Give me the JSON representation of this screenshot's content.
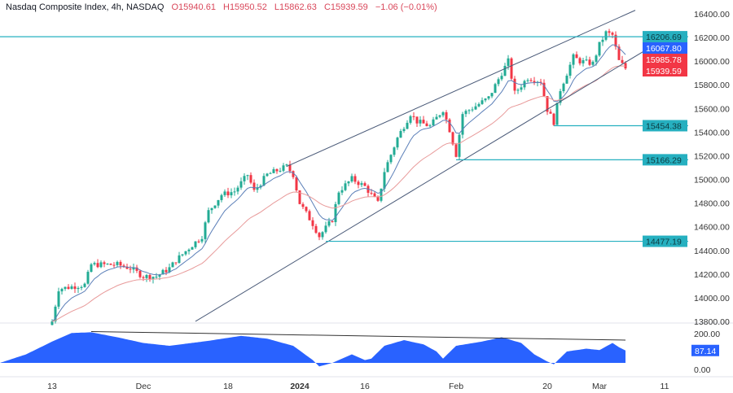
{
  "legend": {
    "symbol": "Nasdaq Composite Index, 4h, NASDAQ",
    "open": "O15940.61",
    "high": "H15950.52",
    "low": "L15862.63",
    "close": "C15939.59",
    "change": "−1.06 (−0.01%)"
  },
  "colors": {
    "up": "#22ab94",
    "down": "#f23645",
    "ma_fast": "#5b7fb8",
    "ma_slow": "#e89a9a",
    "level": "#26b0c0",
    "channel": "#4a5a78",
    "osc": "#2962ff"
  },
  "chart_data": {
    "type": "candlestick",
    "title": "Nasdaq Composite Index, 4h",
    "ylim": [
      13800,
      16450
    ],
    "y_ticks": [
      16400,
      16200,
      16000,
      15800,
      15600,
      15400,
      15200,
      15000,
      14800,
      14600,
      14400,
      14200,
      14000,
      13800
    ],
    "x_ticks": [
      {
        "i": 0,
        "label": "13"
      },
      {
        "i": 14,
        "label": "Dec"
      },
      {
        "i": 27,
        "label": "18"
      },
      {
        "i": 38,
        "label": "2024"
      },
      {
        "i": 48,
        "label": "16"
      },
      {
        "i": 62,
        "label": "Feb"
      },
      {
        "i": 76,
        "label": "20"
      },
      {
        "i": 84,
        "label": "Mar"
      },
      {
        "i": 94,
        "label": "11"
      }
    ],
    "close_anchors": [
      [
        0,
        13800
      ],
      [
        1,
        14075
      ],
      [
        5,
        14110
      ],
      [
        6,
        14280
      ],
      [
        10,
        14280
      ],
      [
        12,
        14250
      ],
      [
        14,
        14180
      ],
      [
        16,
        14180
      ],
      [
        18,
        14250
      ],
      [
        19,
        14315
      ],
      [
        21,
        14420
      ],
      [
        23,
        14520
      ],
      [
        24,
        14730
      ],
      [
        26,
        14870
      ],
      [
        28,
        14900
      ],
      [
        30,
        15040
      ],
      [
        31,
        14900
      ],
      [
        33,
        15040
      ],
      [
        36,
        15110
      ],
      [
        37,
        15040
      ],
      [
        38,
        14800
      ],
      [
        40,
        14625
      ],
      [
        41,
        14520
      ],
      [
        43,
        14660
      ],
      [
        44,
        14900
      ],
      [
        46,
        15005
      ],
      [
        48,
        14940
      ],
      [
        50,
        14800
      ],
      [
        51,
        15070
      ],
      [
        53,
        15350
      ],
      [
        55,
        15555
      ],
      [
        56,
        15490
      ],
      [
        58,
        15450
      ],
      [
        60,
        15590
      ],
      [
        61,
        15420
      ],
      [
        62,
        15210
      ],
      [
        63,
        15555
      ],
      [
        65,
        15620
      ],
      [
        67,
        15690
      ],
      [
        69,
        15900
      ],
      [
        70,
        16000
      ],
      [
        71,
        15730
      ],
      [
        73,
        15860
      ],
      [
        75,
        15830
      ],
      [
        76,
        15590
      ],
      [
        77,
        15485
      ],
      [
        78,
        15760
      ],
      [
        80,
        16035
      ],
      [
        81,
        16000
      ],
      [
        83,
        15980
      ],
      [
        84,
        16140
      ],
      [
        85,
        16240
      ],
      [
        86,
        16220
      ],
      [
        87,
        16000
      ],
      [
        88,
        15940
      ]
    ],
    "levels": [
      {
        "value": 16206.69,
        "label": "16206.69",
        "from": -8
      },
      {
        "value": 15454.38,
        "label": "15454.38",
        "from": 77
      },
      {
        "value": 15166.29,
        "label": "15166.29",
        "from": 62
      },
      {
        "value": 14477.19,
        "label": "14477.19",
        "from": 42
      }
    ],
    "price_tags": [
      {
        "value": 16067.8,
        "label": "16067.80",
        "color": "#2962ff"
      },
      {
        "value": 15985.78,
        "label": "15985.78",
        "color": "#f23645"
      },
      {
        "value": 15939.59,
        "label": "15939.59",
        "color": "#f23645"
      }
    ],
    "channel": {
      "upper": [
        [
          36,
          15110
        ],
        [
          89.5,
          16430
        ]
      ],
      "lower": [
        [
          22,
          13800
        ],
        [
          92.5,
          16140
        ]
      ]
    },
    "oscillator": {
      "ylim": [
        0,
        200
      ],
      "ticks": [
        "200.00",
        "0.00"
      ],
      "value": 87.14,
      "value_label": "87.14",
      "anchors": [
        [
          -8,
          0
        ],
        [
          -4,
          60
        ],
        [
          0,
          150
        ],
        [
          3,
          210
        ],
        [
          6,
          215
        ],
        [
          10,
          180
        ],
        [
          14,
          140
        ],
        [
          18,
          120
        ],
        [
          24,
          155
        ],
        [
          29,
          190
        ],
        [
          33,
          170
        ],
        [
          37,
          120
        ],
        [
          40,
          20
        ],
        [
          41,
          -25
        ],
        [
          43,
          0
        ],
        [
          46,
          60
        ],
        [
          48,
          20
        ],
        [
          49,
          30
        ],
        [
          51,
          120
        ],
        [
          54,
          160
        ],
        [
          57,
          130
        ],
        [
          59,
          80
        ],
        [
          60,
          30
        ],
        [
          62,
          120
        ],
        [
          66,
          150
        ],
        [
          69,
          180
        ],
        [
          72,
          140
        ],
        [
          74,
          60
        ],
        [
          76,
          10
        ],
        [
          77,
          -10
        ],
        [
          79,
          80
        ],
        [
          82,
          100
        ],
        [
          84,
          90
        ],
        [
          86,
          140
        ],
        [
          87,
          110
        ],
        [
          88,
          87
        ]
      ],
      "trendline": [
        [
          6,
          220
        ],
        [
          88,
          160
        ]
      ]
    }
  }
}
